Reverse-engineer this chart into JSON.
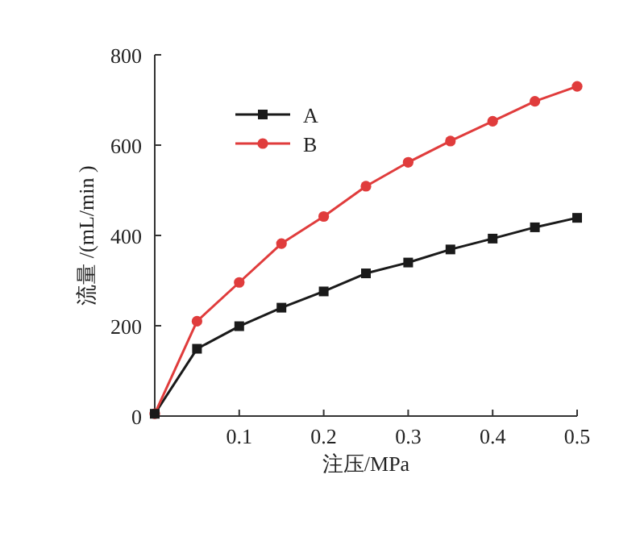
{
  "chart_data": {
    "type": "line",
    "xlabel": "注压/MPa",
    "ylabel": "流量 /(mL/min )",
    "x": [
      0,
      0.05,
      0.1,
      0.15,
      0.2,
      0.25,
      0.3,
      0.35,
      0.4,
      0.45,
      0.5
    ],
    "series": [
      {
        "name": "A",
        "color": "#1a1a1a",
        "marker": "square",
        "values": [
          5,
          149,
          199,
          240,
          276,
          316,
          340,
          369,
          393,
          418,
          439
        ]
      },
      {
        "name": "B",
        "color": "#e03c3c",
        "marker": "circle",
        "values": [
          5,
          210,
          296,
          382,
          442,
          509,
          562,
          609,
          653,
          697,
          730
        ]
      }
    ],
    "xlim": [
      0,
      0.5
    ],
    "xticks": [
      0.1,
      0.2,
      0.3,
      0.4,
      0.5
    ],
    "ylim": [
      0,
      800
    ],
    "yticks": [
      0,
      200,
      400,
      600,
      800
    ],
    "grid": false,
    "legend": "top left",
    "line_style": "solid"
  }
}
